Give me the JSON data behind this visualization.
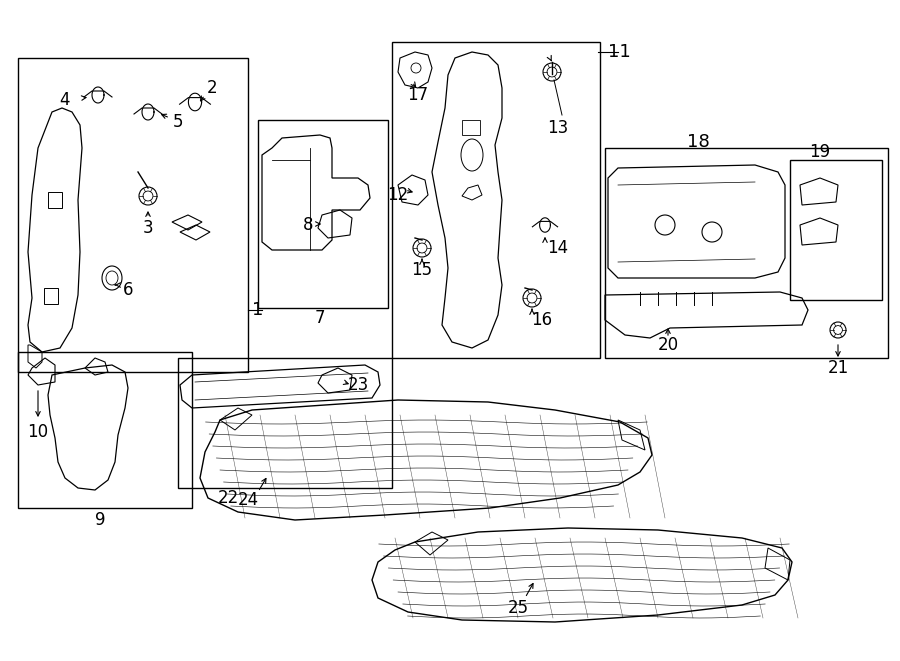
{
  "bg_color": "#ffffff",
  "line_color": "#000000",
  "lw": 1.0,
  "boxes": {
    "b1": [
      18,
      58,
      248,
      372
    ],
    "b7": [
      258,
      120,
      388,
      308
    ],
    "b11": [
      392,
      42,
      600,
      358
    ],
    "b9": [
      18,
      352,
      192,
      508
    ],
    "b22": [
      178,
      358,
      392,
      488
    ],
    "b18": [
      605,
      148,
      888,
      358
    ],
    "b19": [
      790,
      160,
      882,
      300
    ]
  },
  "label_positions": {
    "1": [
      250,
      316,
      "left"
    ],
    "2": [
      208,
      88,
      "center"
    ],
    "3": [
      148,
      248,
      "center"
    ],
    "4": [
      42,
      102,
      "center"
    ],
    "5": [
      180,
      118,
      "center"
    ],
    "6": [
      128,
      282,
      "center"
    ],
    "7": [
      310,
      318,
      "center"
    ],
    "8": [
      308,
      225,
      "center"
    ],
    "9": [
      100,
      518,
      "center"
    ],
    "10": [
      42,
      438,
      "center"
    ],
    "11": [
      620,
      52,
      "left"
    ],
    "12": [
      402,
      195,
      "center"
    ],
    "13": [
      558,
      128,
      "center"
    ],
    "14": [
      565,
      230,
      "center"
    ],
    "15": [
      430,
      265,
      "center"
    ],
    "16": [
      548,
      312,
      "center"
    ],
    "17": [
      415,
      95,
      "center"
    ],
    "18": [
      698,
      158,
      "center"
    ],
    "19": [
      820,
      168,
      "center"
    ],
    "20": [
      668,
      438,
      "center"
    ],
    "21": [
      840,
      370,
      "center"
    ],
    "22": [
      228,
      498,
      "center"
    ],
    "23": [
      362,
      388,
      "center"
    ],
    "24": [
      258,
      495,
      "center"
    ],
    "25": [
      530,
      608,
      "center"
    ]
  }
}
